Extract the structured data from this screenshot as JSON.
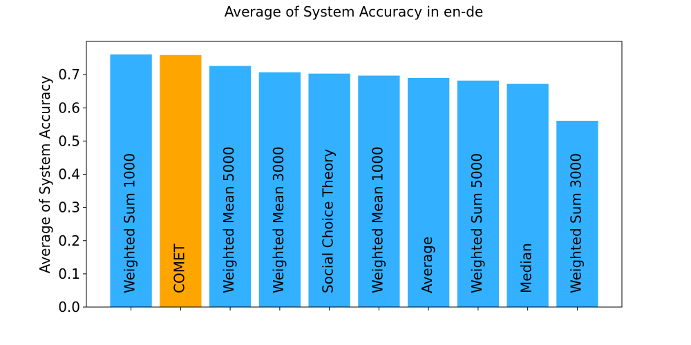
{
  "chart_data": {
    "type": "bar",
    "title": "Average of System Accuracy in en-de",
    "xlabel": "",
    "ylabel": "Average of System Accuracy",
    "ylim": [
      0,
      0.8
    ],
    "yticks": [
      0.0,
      0.1,
      0.2,
      0.3,
      0.4,
      0.5,
      0.6,
      0.7
    ],
    "ytick_labels": [
      "0.0",
      "0.1",
      "0.2",
      "0.3",
      "0.4",
      "0.5",
      "0.6",
      "0.7"
    ],
    "grid": false,
    "categories": [
      "Weighted Sum 1000",
      "COMET",
      "Weighted Mean 5000",
      "Weighted Mean 3000",
      "Social Choice Theory",
      "Weighted Mean 1000",
      "Average",
      "Weighted Sum 5000",
      "Median",
      "Weighted Sum 3000"
    ],
    "values": [
      0.761,
      0.759,
      0.726,
      0.707,
      0.703,
      0.697,
      0.69,
      0.682,
      0.672,
      0.561
    ],
    "colors": [
      "#33b0ff",
      "#ffa500",
      "#33b0ff",
      "#33b0ff",
      "#33b0ff",
      "#33b0ff",
      "#33b0ff",
      "#33b0ff",
      "#33b0ff",
      "#33b0ff"
    ]
  }
}
